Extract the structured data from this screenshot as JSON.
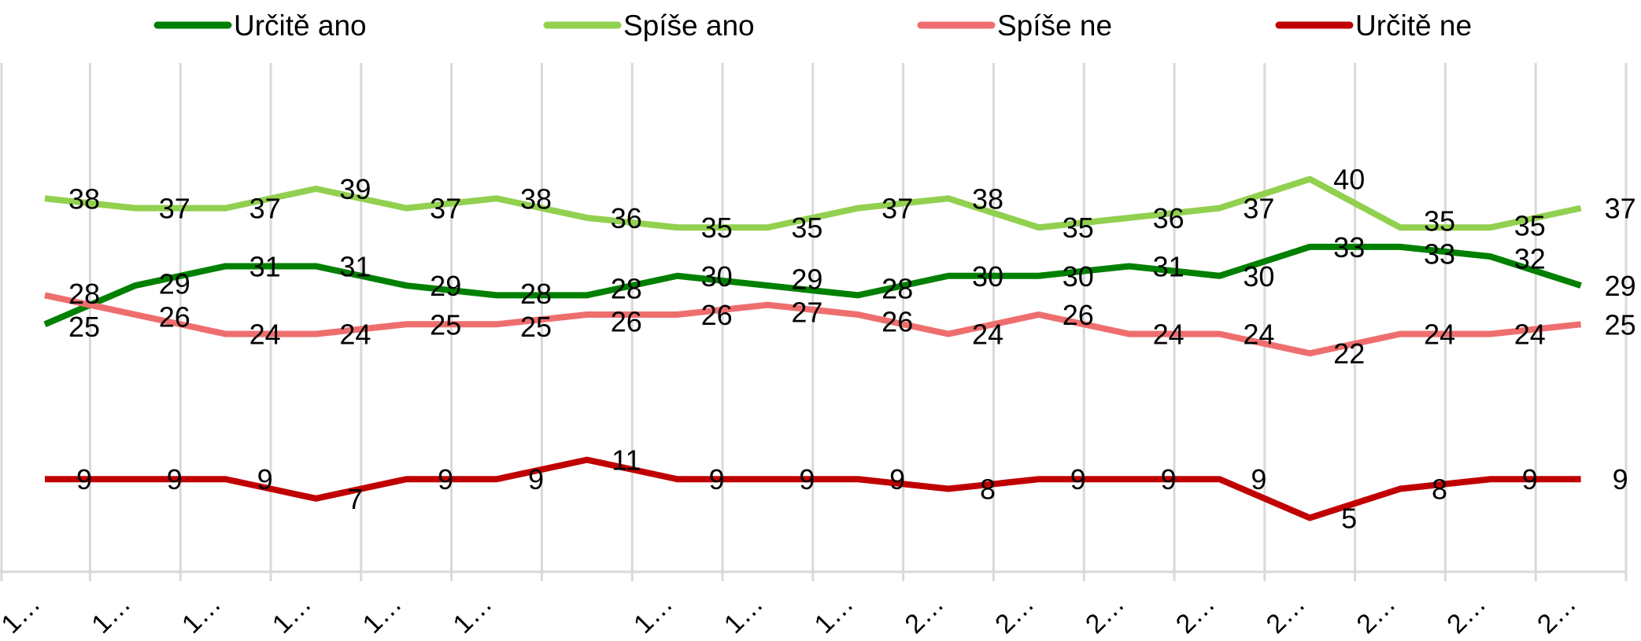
{
  "chart_data": {
    "type": "line",
    "title": "",
    "xlabel": "",
    "ylabel": "",
    "ylim": [
      0,
      52
    ],
    "grid": "vertical",
    "legend_position": "top",
    "categories": [
      "1…",
      "1…",
      "1…",
      "1…",
      "1…",
      "1…",
      "",
      "1…",
      "1…",
      "1…",
      "2…",
      "2…",
      "2…",
      "2…",
      "2…",
      "2…",
      "2…",
      "2…"
    ],
    "series": [
      {
        "name": "Určitě ano",
        "color": "#008000",
        "values": [
          25,
          29,
          31,
          31,
          29,
          28,
          28,
          30,
          29,
          28,
          30,
          30,
          31,
          30,
          33,
          33,
          32,
          29
        ]
      },
      {
        "name": "Spíše ano",
        "color": "#92D050",
        "values": [
          38,
          37,
          37,
          39,
          37,
          38,
          36,
          35,
          35,
          37,
          38,
          35,
          36,
          37,
          40,
          35,
          35,
          37
        ]
      },
      {
        "name": "Spíše ne",
        "color": "#EE6E6E",
        "values": [
          28,
          26,
          24,
          24,
          25,
          25,
          26,
          26,
          27,
          26,
          24,
          26,
          24,
          24,
          22,
          24,
          24,
          25
        ]
      },
      {
        "name": "Určitě ne",
        "color": "#C00000",
        "values": [
          9,
          9,
          9,
          7,
          9,
          9,
          11,
          9,
          9,
          9,
          8,
          9,
          9,
          9,
          5,
          8,
          9,
          9
        ]
      }
    ],
    "data_labels": true
  }
}
